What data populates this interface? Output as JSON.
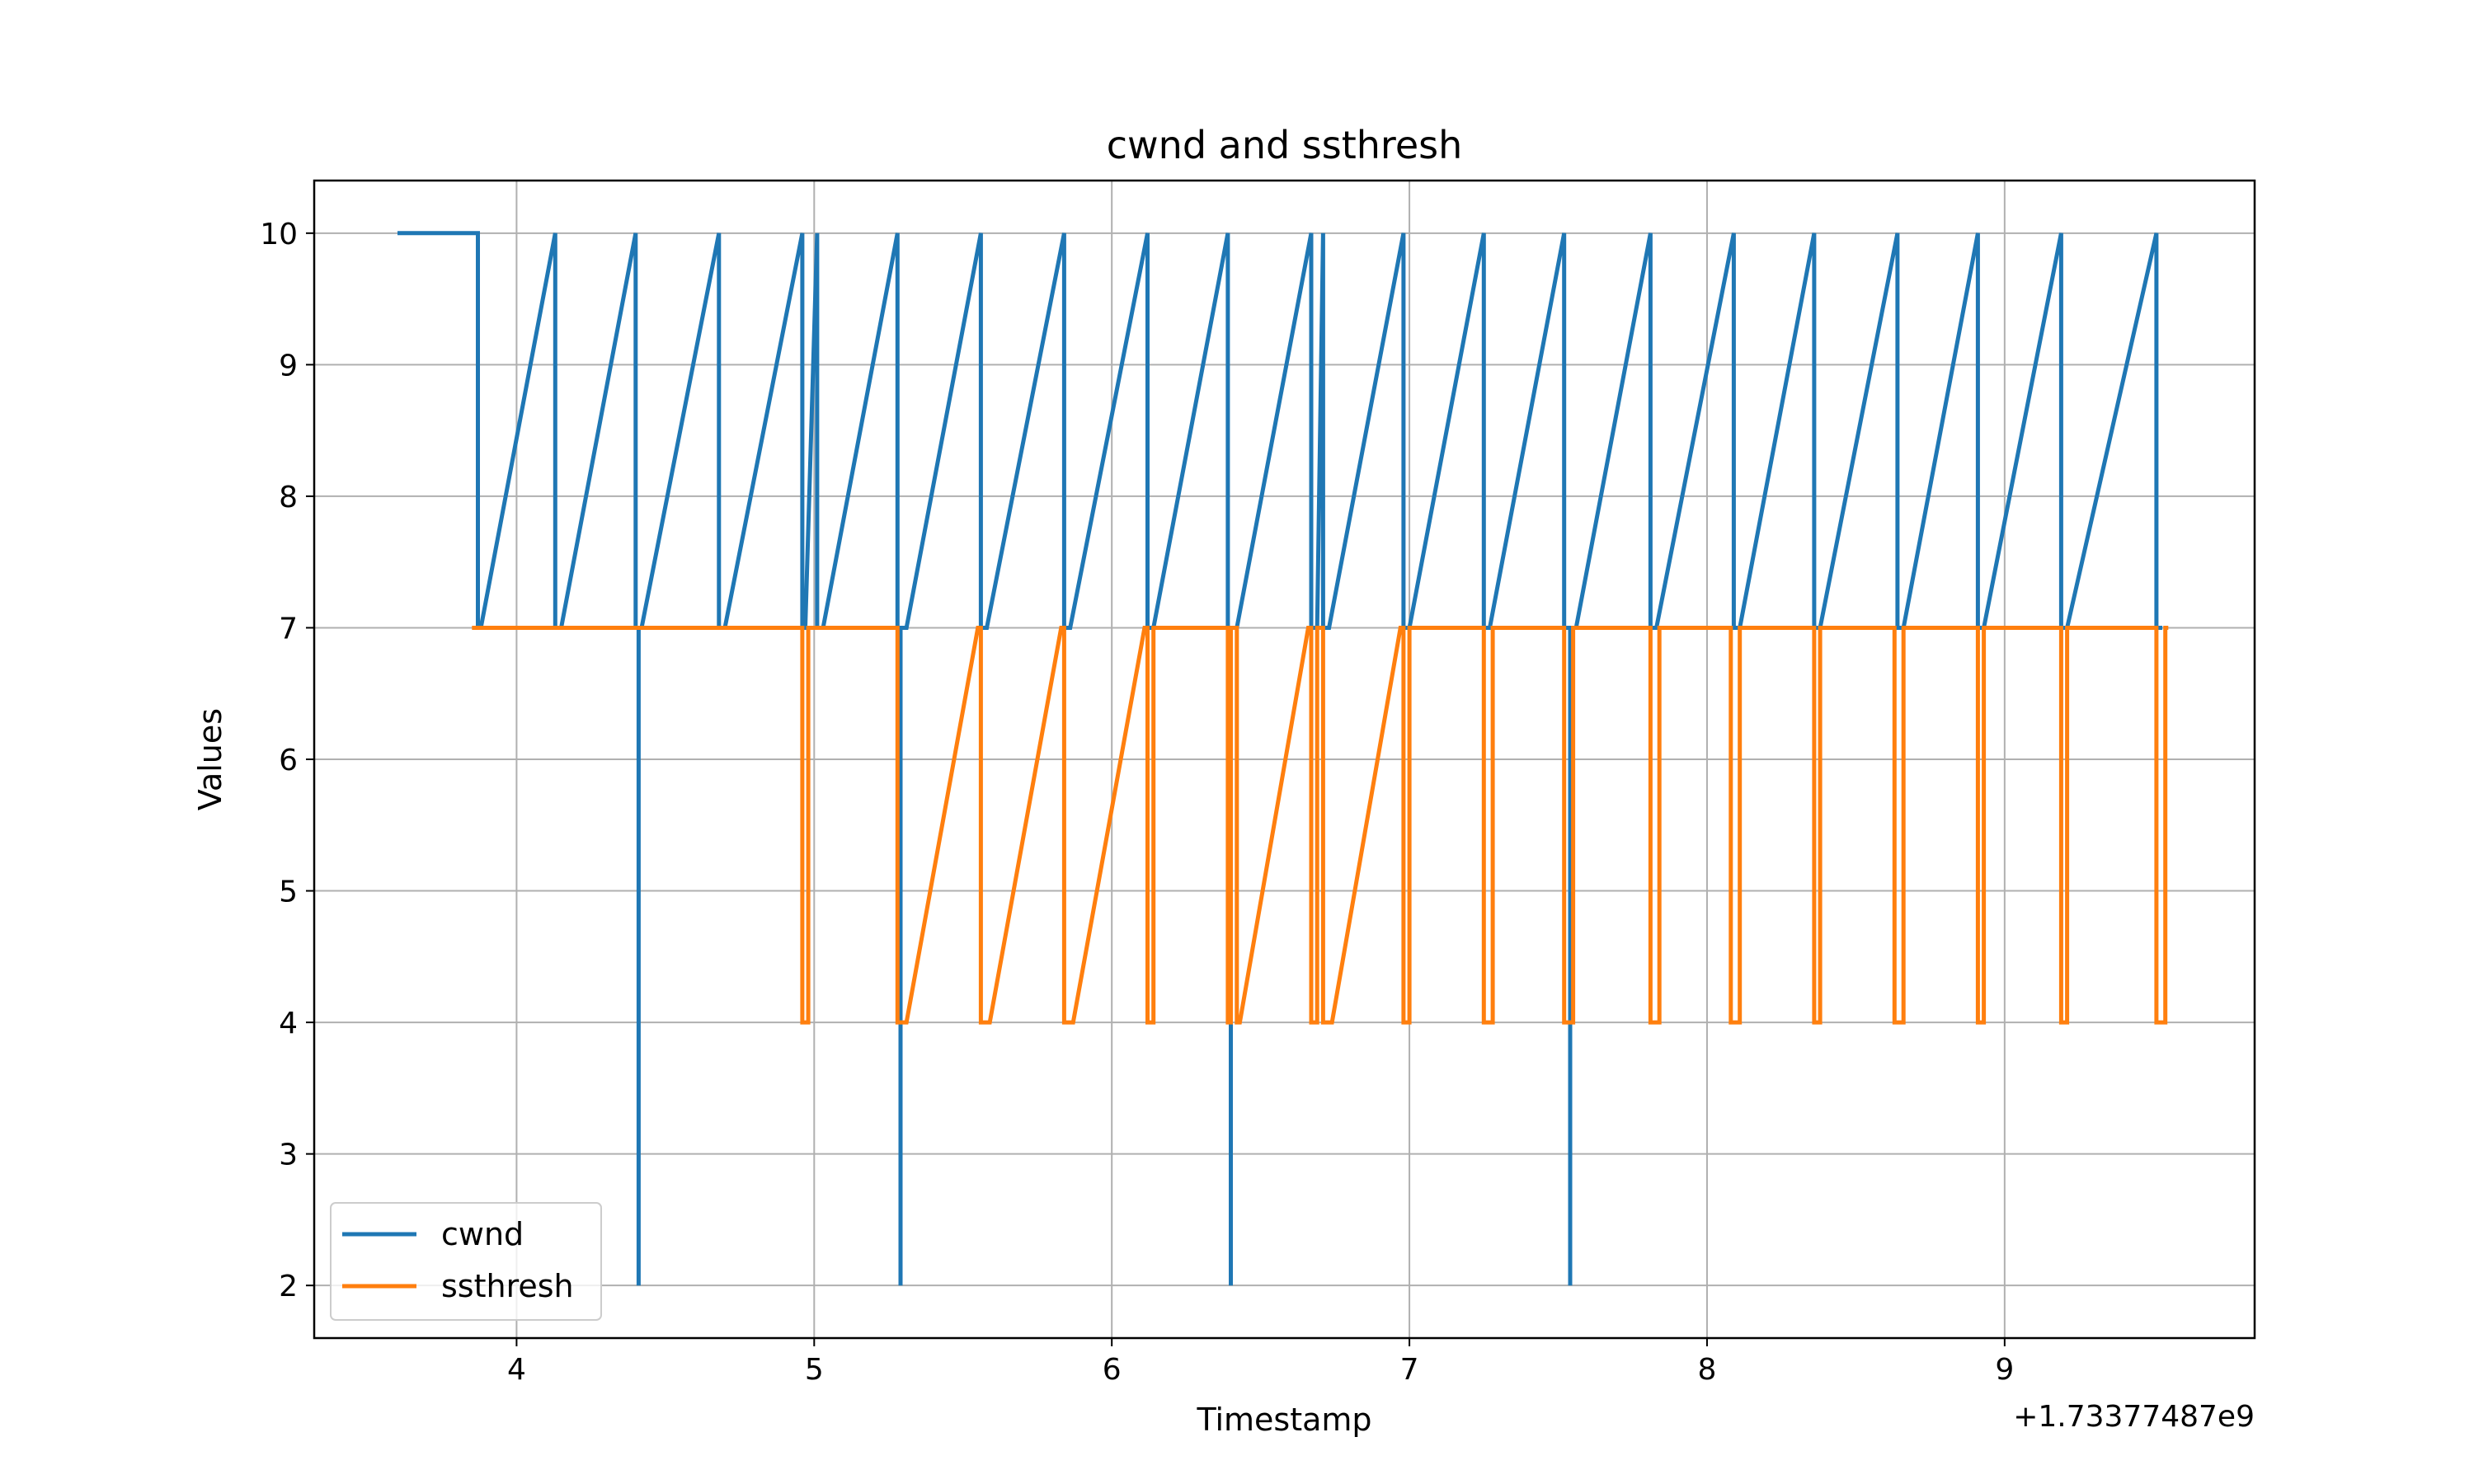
{
  "chart_data": {
    "type": "line",
    "title": "cwnd and ssthresh",
    "xlabel": "Timestamp",
    "ylabel": "Values",
    "x_offset_label": "+1.73377487e9",
    "xlim": [
      3.32,
      9.84
    ],
    "ylim": [
      1.6,
      10.4
    ],
    "xticks": [
      4,
      5,
      6,
      7,
      8,
      9
    ],
    "yticks": [
      2,
      3,
      4,
      5,
      6,
      7,
      8,
      9,
      10
    ],
    "grid": true,
    "legend_position": "lower-left",
    "series": [
      {
        "name": "cwnd",
        "color": "#1f77b4",
        "x": [
          3.6,
          3.87,
          3.87,
          3.88,
          4.13,
          4.13,
          4.15,
          4.4,
          4.4,
          4.41,
          4.41,
          4.41,
          4.42,
          4.68,
          4.68,
          4.7,
          4.96,
          4.96,
          4.97,
          5.01,
          5.01,
          5.03,
          5.28,
          5.28,
          5.29,
          5.29,
          5.29,
          5.31,
          5.56,
          5.56,
          5.58,
          5.84,
          5.84,
          5.86,
          6.12,
          6.12,
          6.14,
          6.39,
          6.39,
          6.4,
          6.4,
          6.4,
          6.42,
          6.67,
          6.67,
          6.69,
          6.71,
          6.71,
          6.73,
          6.98,
          6.98,
          7.0,
          7.25,
          7.25,
          7.27,
          7.52,
          7.52,
          7.54,
          7.54,
          7.54,
          7.56,
          7.81,
          7.81,
          7.83,
          8.09,
          8.09,
          8.11,
          8.36,
          8.36,
          8.38,
          8.64,
          8.64,
          8.66,
          8.91,
          8.91,
          8.93,
          9.19,
          9.19,
          9.21,
          9.51,
          9.51,
          9.53
        ],
        "y": [
          10,
          10,
          7,
          7,
          10,
          7,
          7,
          10,
          7,
          7,
          2,
          7,
          7,
          10,
          7,
          7,
          10,
          7,
          7,
          10,
          7,
          7,
          10,
          7,
          7,
          2,
          7,
          7,
          10,
          7,
          7,
          10,
          7,
          7,
          10,
          7,
          7,
          10,
          7,
          7,
          2,
          7,
          7,
          10,
          7,
          7,
          10,
          7,
          7,
          10,
          7,
          7,
          10,
          7,
          7,
          10,
          7,
          7,
          2,
          7,
          7,
          10,
          7,
          7,
          10,
          7,
          7,
          10,
          7,
          7,
          10,
          7,
          7,
          10,
          7,
          7,
          10,
          7,
          7,
          10,
          7,
          7
        ]
      },
      {
        "name": "ssthresh",
        "color": "#ff7f0e",
        "x": [
          3.85,
          3.89,
          4.12,
          4.16,
          4.39,
          4.43,
          4.67,
          4.71,
          4.95,
          4.96,
          4.96,
          4.98,
          4.98,
          5.03,
          5.27,
          5.28,
          5.28,
          5.31,
          5.55,
          5.56,
          5.56,
          5.59,
          5.83,
          5.84,
          5.84,
          5.87,
          6.11,
          6.12,
          6.12,
          6.14,
          6.14,
          6.16,
          6.38,
          6.39,
          6.39,
          6.4,
          6.4,
          6.42,
          6.42,
          6.43,
          6.66,
          6.67,
          6.67,
          6.69,
          6.69,
          6.71,
          6.71,
          6.74,
          6.97,
          6.98,
          6.98,
          7.0,
          7.0,
          7.01,
          7.24,
          7.25,
          7.25,
          7.28,
          7.28,
          7.29,
          7.52,
          7.52,
          7.52,
          7.55,
          7.55,
          7.57,
          7.8,
          7.81,
          7.81,
          7.84,
          7.84,
          7.85,
          8.08,
          8.08,
          8.08,
          8.11,
          8.11,
          8.12,
          8.35,
          8.36,
          8.36,
          8.38,
          8.38,
          8.39,
          8.63,
          8.63,
          8.63,
          8.66,
          8.66,
          8.67,
          8.9,
          8.91,
          8.91,
          8.93,
          8.93,
          8.94,
          9.18,
          9.19,
          9.19,
          9.21,
          9.21,
          9.22,
          9.5,
          9.51,
          9.51,
          9.54,
          9.54,
          9.55
        ],
        "y": [
          7,
          7,
          7,
          7,
          7,
          7,
          7,
          7,
          7,
          7,
          4,
          4,
          7,
          7,
          7,
          7,
          4,
          4,
          7,
          7,
          4,
          4,
          7,
          7,
          4,
          4,
          7,
          7,
          4,
          4,
          7,
          7,
          7,
          7,
          4,
          4,
          7,
          7,
          4,
          4,
          7,
          7,
          4,
          4,
          7,
          7,
          4,
          4,
          7,
          7,
          4,
          4,
          7,
          7,
          7,
          7,
          4,
          4,
          7,
          7,
          7,
          7,
          4,
          4,
          7,
          7,
          7,
          7,
          4,
          4,
          7,
          7,
          7,
          7,
          4,
          4,
          7,
          7,
          7,
          7,
          4,
          4,
          7,
          7,
          7,
          7,
          4,
          4,
          7,
          7,
          7,
          7,
          4,
          4,
          7,
          7,
          7,
          7,
          4,
          4,
          7,
          7,
          7,
          7,
          4,
          4,
          7,
          7
        ]
      }
    ]
  }
}
